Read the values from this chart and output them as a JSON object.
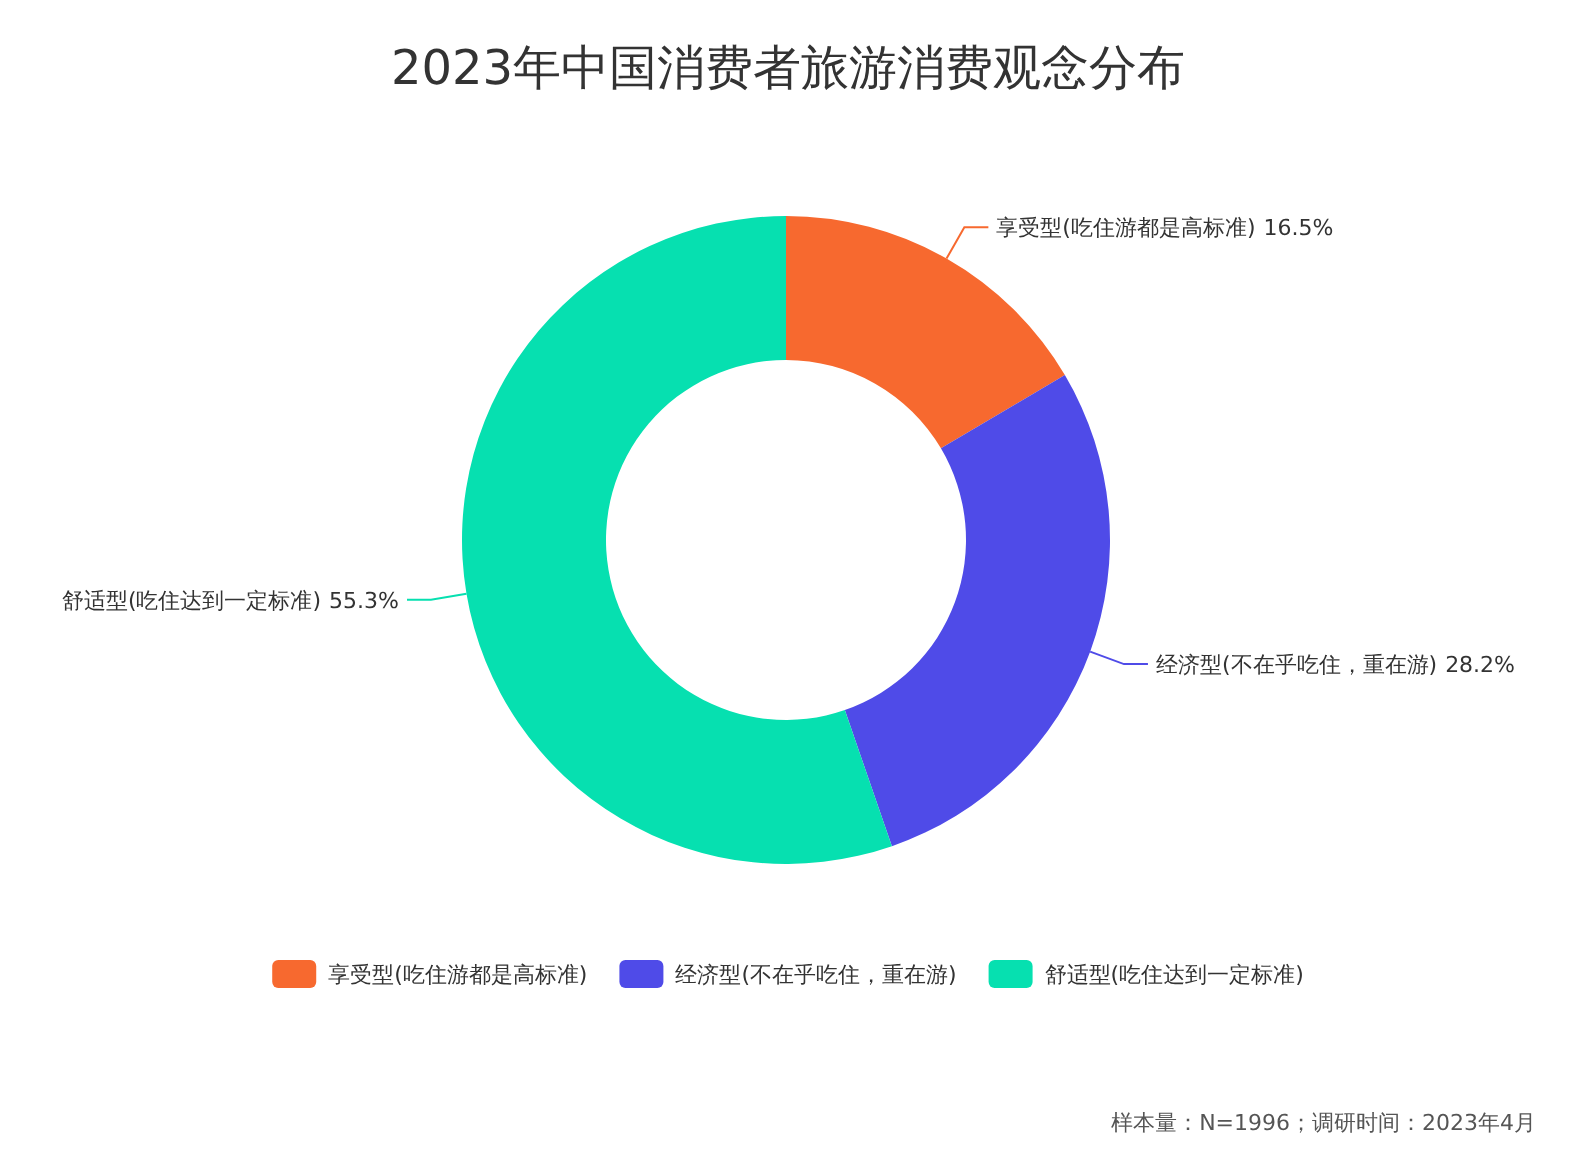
{
  "chart_data": {
    "type": "donut",
    "title": "2023年中国消费者旅游消费观念分布",
    "categories": [
      "享受型(吃住游都是高标准)",
      "经济型(不在乎吃住，重在游)",
      "舒适型(吃住达到一定标准)"
    ],
    "values": [
      16.5,
      28.2,
      55.3
    ],
    "colors": [
      "#f7692f",
      "#4f4be8",
      "#06e0b0"
    ],
    "value_labels": [
      "16.5%",
      "28.2%",
      "55.3%"
    ],
    "legend": "bottom",
    "annotations": [
      "样本量：N=1996；调研时间：2023年4月"
    ]
  }
}
